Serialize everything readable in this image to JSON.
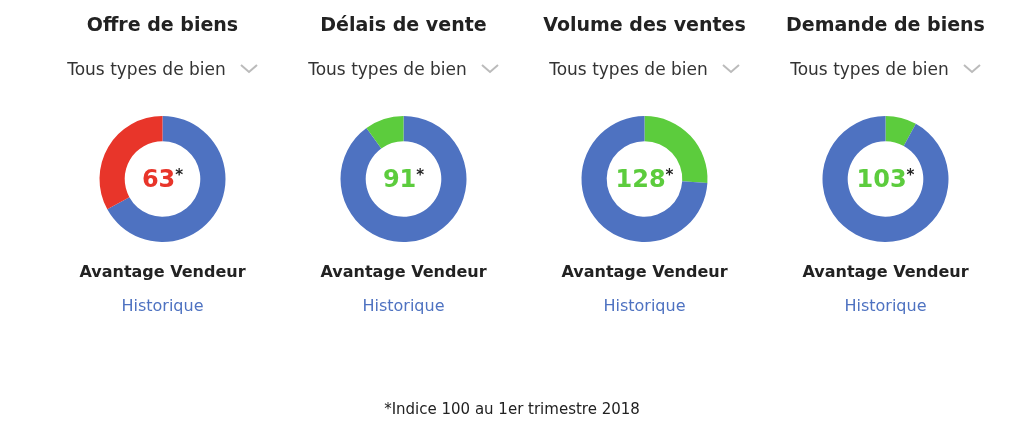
{
  "chart_data": [
    {
      "type": "donut",
      "title": "Offre de biens",
      "subtitle": "Tous types de bien",
      "categories": [
        null,
        null
      ],
      "values": [
        67,
        33
      ],
      "colors": [
        "#4e72c1",
        "#e8352a"
      ],
      "annotations": [
        "63*",
        "Avantage Vendeur",
        "Historique"
      ]
    },
    {
      "type": "donut",
      "title": "Délais de vente",
      "subtitle": "Tous types de bien",
      "categories": [
        null,
        null
      ],
      "values": [
        90,
        10
      ],
      "colors": [
        "#4e72c1",
        "#5ccc3d"
      ],
      "annotations": [
        "91*",
        "Avantage Vendeur",
        "Historique"
      ]
    },
    {
      "type": "donut",
      "title": "Volume des ventes",
      "subtitle": "Tous types de bien",
      "categories": [
        null,
        null
      ],
      "values": [
        26,
        74
      ],
      "colors": [
        "#5ccc3d",
        "#4e72c1"
      ],
      "annotations": [
        "128*",
        "Avantage Vendeur",
        "Historique"
      ]
    },
    {
      "type": "donut",
      "title": "Demande de biens",
      "subtitle": "Tous types de bien",
      "categories": [
        null,
        null
      ],
      "values": [
        8,
        92
      ],
      "colors": [
        "#5ccc3d",
        "#4e72c1"
      ],
      "annotations": [
        "103*",
        "Avantage Vendeur",
        "Historique"
      ]
    },
    {
      "type": "other",
      "annotations": [
        "*Indice 100 au 1er trimestre 2018"
      ]
    }
  ]
}
